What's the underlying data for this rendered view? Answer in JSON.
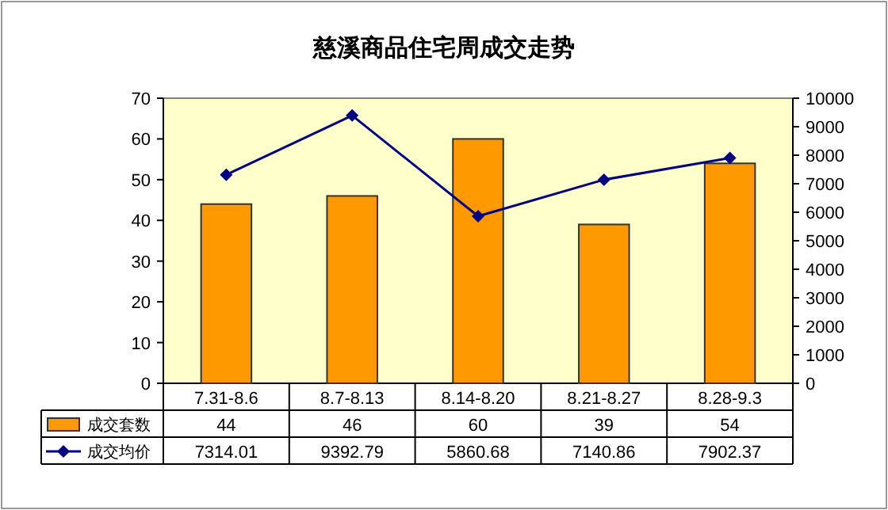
{
  "chart_data": {
    "type": "bar",
    "title": "慈溪商品住宅周成交走势",
    "categories": [
      "7.31-8.6",
      "8.7-8.13",
      "8.14-8.20",
      "8.21-8.27",
      "8.28-9.3"
    ],
    "series": [
      {
        "name": "成交套数",
        "color": "#ff9900",
        "values": [
          44,
          46,
          60,
          39,
          54
        ]
      },
      {
        "name": "成交均价",
        "type": "line",
        "axis": "y2",
        "color": "#000080",
        "marker": "diamond",
        "values": [
          7314.01,
          9392.79,
          5860.68,
          7140.86,
          7902.37
        ],
        "value_labels": [
          "7314.01",
          "9392.79",
          "5860.68",
          "7140.86",
          "7902.37"
        ]
      }
    ],
    "ylim": [
      0,
      70
    ],
    "yticks": [
      0,
      10,
      20,
      30,
      40,
      50,
      60,
      70
    ],
    "y2lim": [
      0,
      10000
    ],
    "y2ticks": [
      0,
      1000,
      2000,
      3000,
      4000,
      5000,
      6000,
      7000,
      8000,
      9000,
      10000
    ],
    "data_labels": true,
    "legend": "bottom left",
    "grid": false
  }
}
